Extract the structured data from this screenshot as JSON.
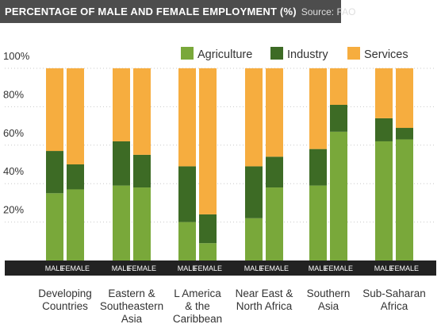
{
  "header": {
    "title": "PERCENTAGE OF MALE AND FEMALE EMPLOYMENT (%)",
    "source": "Source: FAO"
  },
  "chart_data": {
    "type": "bar",
    "stacked": true,
    "title": "PERCENTAGE OF MALE AND FEMALE EMPLOYMENT (%)",
    "xlabel": "",
    "ylabel": "",
    "ylim": [
      0,
      100
    ],
    "y_ticks": [
      20,
      40,
      60,
      80,
      100
    ],
    "y_tick_labels": [
      "20%",
      "40%",
      "60%",
      "80%",
      "100%"
    ],
    "legend_position": "top-right",
    "colors": {
      "Agriculture": "#79a83a",
      "Industry": "#3d6b25",
      "Services": "#f6ad3f"
    },
    "groups": [
      {
        "label": [
          "Developing",
          "Countries"
        ],
        "bar_labels": [
          "MALE",
          "FEMALE"
        ]
      },
      {
        "label": [
          "Eastern &",
          "Southeastern",
          "Asia"
        ],
        "bar_labels": [
          "MALE",
          "FEMALE"
        ]
      },
      {
        "label": [
          "L America",
          "& the",
          "Caribbean"
        ],
        "bar_labels": [
          "MALE",
          "FEMALE"
        ]
      },
      {
        "label": [
          "Near East &",
          "North Africa"
        ],
        "bar_labels": [
          "MALE",
          "FEMALE"
        ]
      },
      {
        "label": [
          "Southern",
          "Asia"
        ],
        "bar_labels": [
          "MALE",
          "FEMALE"
        ]
      },
      {
        "label": [
          "Sub-Saharan",
          "Africa"
        ],
        "bar_labels": [
          "MALE",
          "FEMALE"
        ]
      }
    ],
    "series": [
      {
        "name": "Agriculture",
        "values": [
          [
            35,
            37
          ],
          [
            39,
            38
          ],
          [
            20,
            9
          ],
          [
            22,
            38
          ],
          [
            39,
            67
          ],
          [
            62,
            63
          ]
        ]
      },
      {
        "name": "Industry",
        "values": [
          [
            22,
            13
          ],
          [
            23,
            17
          ],
          [
            29,
            15
          ],
          [
            27,
            16
          ],
          [
            19,
            14
          ],
          [
            12,
            6
          ]
        ]
      },
      {
        "name": "Services",
        "values": [
          [
            43,
            50
          ],
          [
            38,
            45
          ],
          [
            51,
            76
          ],
          [
            51,
            46
          ],
          [
            42,
            19
          ],
          [
            26,
            31
          ]
        ]
      }
    ]
  }
}
